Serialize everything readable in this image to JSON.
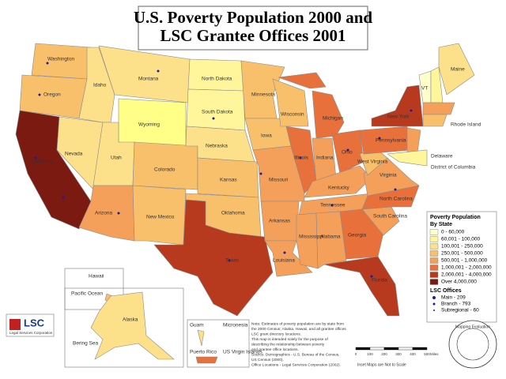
{
  "title": [
    "U.S. Poverty Population 2000 and",
    "LSC Grantee Offices 2001"
  ],
  "states": [
    "Washington",
    "Oregon",
    "Idaho",
    "Montana",
    "North Dakota",
    "Minnesota",
    "Wisconsin",
    "Michigan",
    "New York",
    "Maine",
    "VT",
    "Rhode Island",
    "Delaware",
    "District of Columbia",
    "Wyoming",
    "South Dakota",
    "Nebraska",
    "Iowa",
    "Illinois",
    "Indiana",
    "Ohio",
    "Pennsylvania",
    "West Virginia",
    "Virginia",
    "Nevada",
    "Utah",
    "Colorado",
    "Kansas",
    "Missouri",
    "Kentucky",
    "California",
    "Arizona",
    "New Mexico",
    "Oklahoma",
    "Arkansas",
    "Tennessee",
    "North Carolina",
    "South Carolina",
    "Texas",
    "Mississippi",
    "Alabama",
    "Georgia",
    "Louisiana",
    "Florida"
  ],
  "insets": {
    "hawaii": "Hawaii",
    "pacific": "Pacific Ocean",
    "alaska": "Alaska",
    "bering": "Bering Sea",
    "guam": "Guam",
    "micronesia": "Micronesia",
    "puerto_rico": "Puerto Rico",
    "virgin": "US Virgin Islands"
  },
  "legend": {
    "title": [
      "Poverty Population",
      "By State"
    ],
    "items": [
      {
        "label": "0 - 60,000",
        "color": "#ffffcc"
      },
      {
        "label": "60,001 - 100,000",
        "color": "#fff59a"
      },
      {
        "label": "100,001 - 250,000",
        "color": "#fde08a"
      },
      {
        "label": "250,001 - 500,000",
        "color": "#f9c06c"
      },
      {
        "label": "500,001 - 1,000,000",
        "color": "#f4a05a"
      },
      {
        "label": "1,000,001 - 2,000,000",
        "color": "#e8703a"
      },
      {
        "label": "2,000,001 - 4,000,000",
        "color": "#b83a1e"
      },
      {
        "label": "Over 4,000,000",
        "color": "#7a1a10"
      }
    ],
    "offices_title": "LSC Offices",
    "offices": [
      "Main - 209",
      "Branch - 793",
      "Subregional - 60"
    ]
  },
  "notes": [
    "Note: Estimates of poverty population are by state from",
    "the 2000 Census; Alaska, Hawaii, and all grantee offices",
    "LSC grant directory locations.",
    "This map is intended solely for the purpose of",
    "describing the relationship between poverty",
    "and grantee office locations.",
    "Source: Demographics - U.S. Bureau of the Census,",
    "US Census (2000).",
    "Office Locations - Legal Services Corporation (2002)."
  ],
  "scale": {
    "ticks": [
      "0",
      "100",
      "200",
      "300",
      "400",
      "500"
    ],
    "unit": "Miles",
    "note": "Inset Maps are Not to Scale"
  },
  "logo": {
    "name": "LSC",
    "subtitle": "Legal Services Corporation"
  },
  "seal": "Mapping Evaluation"
}
